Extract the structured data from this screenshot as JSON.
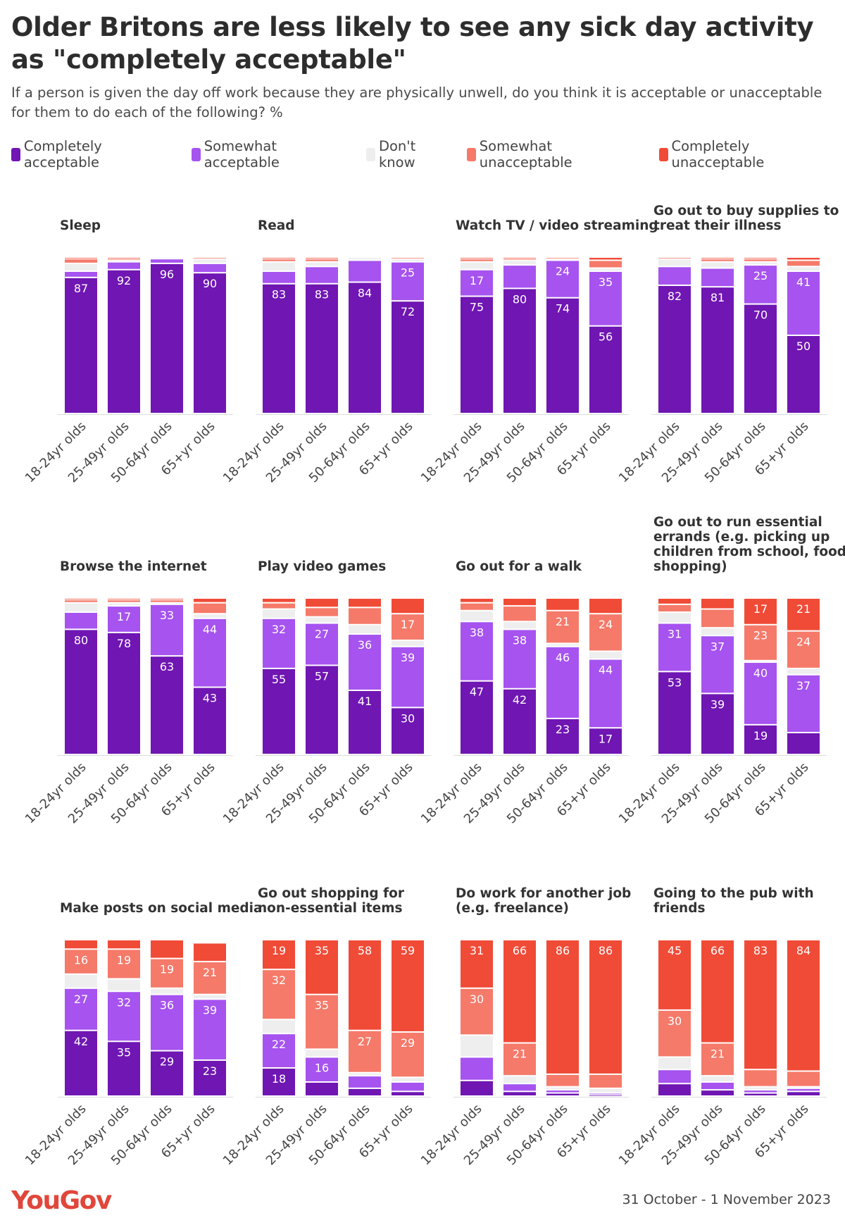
{
  "title": "Older Britons are less likely to see any sick day activity as \"completely acceptable\"",
  "subtitle": "If a person is given the day off work because they are physically unwell, do you think it is acceptable or unacceptable for them to do each of the following? %",
  "legend": [
    {
      "label": "Completely acceptable",
      "color": "#6f16b3"
    },
    {
      "label": "Somewhat acceptable",
      "color": "#a653ef"
    },
    {
      "label": "Don't know",
      "color": "#eeeeee"
    },
    {
      "label": "Somewhat unacceptable",
      "color": "#f57a6a"
    },
    {
      "label": "Completely unacceptable",
      "color": "#f04b37"
    }
  ],
  "footer": {
    "brand": "YouGov",
    "date": "31 October - 1 November 2023"
  },
  "chart_data": {
    "type": "bar",
    "stacked": true,
    "categories": [
      "18-24yr olds",
      "25-49yr olds",
      "50-64yr olds",
      "65+yr olds"
    ],
    "series_names": [
      "Completely acceptable",
      "Somewhat acceptable",
      "Don't know",
      "Somewhat unacceptable",
      "Completely unacceptable"
    ],
    "ylim": [
      0,
      100
    ],
    "panels": [
      {
        "title": [
          "Sleep"
        ],
        "values": [
          [
            87,
            4,
            5,
            3,
            1
          ],
          [
            92,
            5,
            1,
            1,
            1
          ],
          [
            96,
            3,
            1,
            0,
            0
          ],
          [
            90,
            6,
            3,
            1,
            0
          ]
        ],
        "labels": [
          [
            87,
            null,
            null,
            null,
            null
          ],
          [
            92,
            null,
            null,
            null,
            null
          ],
          [
            96,
            null,
            null,
            null,
            null
          ],
          [
            90,
            null,
            null,
            null,
            null
          ]
        ]
      },
      {
        "title": [
          "Read"
        ],
        "values": [
          [
            83,
            8,
            6,
            2,
            1
          ],
          [
            83,
            11,
            3,
            2,
            1
          ],
          [
            84,
            14,
            2,
            0,
            0
          ],
          [
            72,
            25,
            2,
            1,
            0
          ]
        ],
        "labels": [
          [
            83,
            null,
            null,
            null,
            null
          ],
          [
            83,
            null,
            null,
            null,
            null
          ],
          [
            84,
            null,
            null,
            null,
            null
          ],
          [
            72,
            25,
            null,
            null,
            null
          ]
        ]
      },
      {
        "title": [
          "Watch TV / video streaming"
        ],
        "values": [
          [
            75,
            17,
            5,
            2,
            1
          ],
          [
            80,
            15,
            3,
            1,
            1
          ],
          [
            74,
            24,
            1,
            1,
            0
          ],
          [
            56,
            35,
            2,
            5,
            2
          ]
        ],
        "labels": [
          [
            75,
            17,
            null,
            null,
            null
          ],
          [
            80,
            null,
            null,
            null,
            null
          ],
          [
            74,
            24,
            null,
            null,
            null
          ],
          [
            56,
            35,
            null,
            null,
            null
          ]
        ]
      },
      {
        "title": [
          "Go out to buy supplies to",
          "treat their illness"
        ],
        "values": [
          [
            82,
            12,
            5,
            1,
            0
          ],
          [
            81,
            12,
            4,
            2,
            1
          ],
          [
            70,
            25,
            2,
            2,
            1
          ],
          [
            50,
            41,
            3,
            4,
            2
          ]
        ],
        "labels": [
          [
            82,
            null,
            null,
            null,
            null
          ],
          [
            81,
            null,
            null,
            null,
            null
          ],
          [
            70,
            25,
            null,
            null,
            null
          ],
          [
            50,
            41,
            null,
            null,
            null
          ]
        ]
      },
      {
        "title": [
          "Browse the internet"
        ],
        "values": [
          [
            80,
            11,
            6,
            2,
            1
          ],
          [
            78,
            17,
            2,
            2,
            1
          ],
          [
            63,
            33,
            1,
            2,
            1
          ],
          [
            43,
            44,
            3,
            7,
            3
          ]
        ],
        "labels": [
          [
            80,
            null,
            null,
            null,
            null
          ],
          [
            78,
            17,
            null,
            null,
            null
          ],
          [
            63,
            33,
            null,
            null,
            null
          ],
          [
            43,
            44,
            null,
            null,
            null
          ]
        ]
      },
      {
        "title": [
          "Play video games"
        ],
        "values": [
          [
            55,
            32,
            6,
            4,
            3
          ],
          [
            57,
            27,
            4,
            6,
            6
          ],
          [
            41,
            36,
            6,
            11,
            6
          ],
          [
            30,
            39,
            4,
            17,
            10
          ]
        ],
        "labels": [
          [
            55,
            32,
            null,
            null,
            null
          ],
          [
            57,
            27,
            null,
            null,
            null
          ],
          [
            41,
            36,
            null,
            null,
            null
          ],
          [
            30,
            39,
            null,
            17,
            null
          ]
        ]
      },
      {
        "title": [
          "Go out for a walk"
        ],
        "values": [
          [
            47,
            38,
            7,
            5,
            3
          ],
          [
            42,
            38,
            5,
            10,
            5
          ],
          [
            23,
            46,
            2,
            21,
            8
          ],
          [
            17,
            44,
            5,
            24,
            10
          ]
        ],
        "labels": [
          [
            47,
            38,
            null,
            null,
            null
          ],
          [
            42,
            38,
            null,
            null,
            null
          ],
          [
            23,
            46,
            null,
            21,
            null
          ],
          [
            17,
            44,
            null,
            24,
            null
          ]
        ]
      },
      {
        "title": [
          "Go out to run essential",
          "errands (e.g. picking up",
          "children from school, food",
          "shopping)"
        ],
        "values": [
          [
            53,
            31,
            7,
            5,
            4
          ],
          [
            39,
            37,
            5,
            12,
            7
          ],
          [
            19,
            40,
            1,
            23,
            17
          ],
          [
            14,
            37,
            4,
            24,
            21
          ]
        ],
        "labels": [
          [
            53,
            31,
            null,
            null,
            null
          ],
          [
            39,
            37,
            null,
            null,
            null
          ],
          [
            19,
            40,
            null,
            23,
            17
          ],
          [
            null,
            37,
            null,
            24,
            21
          ]
        ]
      },
      {
        "title": [
          "Make posts on social media"
        ],
        "values": [
          [
            42,
            27,
            9,
            16,
            6
          ],
          [
            35,
            32,
            8,
            19,
            6
          ],
          [
            29,
            36,
            4,
            19,
            12
          ],
          [
            23,
            39,
            3,
            21,
            12
          ]
        ],
        "labels": [
          [
            42,
            27,
            null,
            16,
            null
          ],
          [
            35,
            32,
            null,
            19,
            null
          ],
          [
            29,
            36,
            null,
            19,
            null
          ],
          [
            23,
            39,
            null,
            21,
            null
          ]
        ]
      },
      {
        "title": [
          "Go out shopping for",
          "non-essential items"
        ],
        "values": [
          [
            18,
            22,
            9,
            32,
            19
          ],
          [
            9,
            16,
            5,
            35,
            35
          ],
          [
            5,
            8,
            2,
            27,
            58
          ],
          [
            3,
            6,
            3,
            29,
            59
          ]
        ],
        "labels": [
          [
            18,
            22,
            null,
            32,
            19
          ],
          [
            null,
            16,
            null,
            35,
            35
          ],
          [
            null,
            null,
            null,
            27,
            58
          ],
          [
            null,
            null,
            null,
            29,
            59
          ]
        ]
      },
      {
        "title": [
          "Do work for another job",
          "(e.g. freelance)"
        ],
        "values": [
          [
            10,
            15,
            14,
            30,
            31
          ],
          [
            3,
            5,
            5,
            21,
            66
          ],
          [
            2,
            2,
            2,
            8,
            86
          ],
          [
            1,
            1,
            3,
            9,
            86
          ]
        ],
        "labels": [
          [
            null,
            null,
            null,
            30,
            31
          ],
          [
            null,
            null,
            null,
            21,
            66
          ],
          [
            null,
            null,
            null,
            null,
            86
          ],
          [
            null,
            null,
            null,
            null,
            86
          ]
        ]
      },
      {
        "title": [
          "Going to the pub with",
          "friends"
        ],
        "values": [
          [
            8,
            9,
            8,
            30,
            45
          ],
          [
            4,
            5,
            4,
            21,
            66
          ],
          [
            2,
            2,
            2,
            11,
            83
          ],
          [
            3,
            2,
            1,
            10,
            84
          ]
        ],
        "labels": [
          [
            null,
            null,
            null,
            30,
            45
          ],
          [
            null,
            null,
            null,
            21,
            66
          ],
          [
            null,
            null,
            null,
            null,
            83
          ],
          [
            null,
            null,
            null,
            null,
            84
          ]
        ]
      }
    ]
  }
}
